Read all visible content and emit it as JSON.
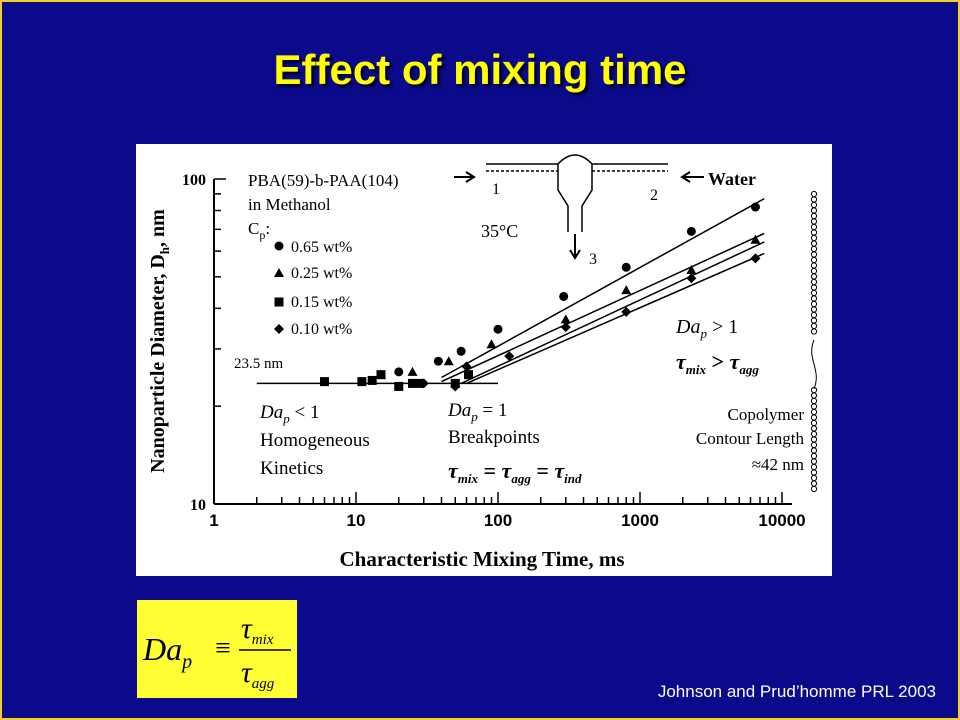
{
  "slide": {
    "title": "Effect of mixing time",
    "citation": "Johnson and Prud’homme PRL 2003",
    "formula": {
      "lhs": "Da",
      "lhs_sub": "p",
      "op": "≡",
      "num": "τ",
      "num_sub": "mix",
      "den": "τ",
      "den_sub": "agg"
    }
  },
  "figure": {
    "legend": {
      "title_lines": [
        "PBA(59)-b-PAA(104)",
        "in Methanol",
        "C"
      ],
      "cp_sub": "p",
      "cp_colon": ":",
      "entries": [
        {
          "label": "0.65 wt%",
          "marker": "circle"
        },
        {
          "label": "0.25 wt%",
          "marker": "triangle"
        },
        {
          "label": "0.15 wt%",
          "marker": "square"
        },
        {
          "label": "0.10 wt%",
          "marker": "diamond"
        }
      ]
    },
    "schematic": {
      "inlet1": "1",
      "inlet2": "2",
      "outlet": "3",
      "temperature": "35°C",
      "water": "Water"
    },
    "annotations": {
      "plateau_label": "23.5 nm",
      "regime_low": {
        "da": "Da",
        "sub": "p",
        "rel": " < 1",
        "line2": "Homogeneous",
        "line3": "Kinetics"
      },
      "regime_break": {
        "da": "Da",
        "sub": "p",
        "rel": " = 1",
        "line2": "Breakpoints",
        "eq": [
          "τ",
          "mix",
          " = ",
          "τ",
          "agg",
          " = ",
          "τ",
          "ind"
        ]
      },
      "regime_high": {
        "da": "Da",
        "sub": "p",
        "rel": " > 1",
        "eq": [
          "τ",
          "mix",
          " > ",
          "τ",
          "agg"
        ]
      },
      "copolymer": [
        "Copolymer",
        "Contour Length",
        "≈42 nm"
      ]
    }
  },
  "chart_data": {
    "type": "scatter",
    "x_scale": "log",
    "y_scale": "log",
    "xlim": [
      1,
      10000
    ],
    "ylim": [
      10,
      100
    ],
    "xlabel": "Characteristic Mixing Time, ms",
    "ylabel": "Nanoparticle Diameter, D",
    "ylabel_sub": "h",
    "ylabel_unit": ", nm",
    "x_ticks": [
      1,
      10,
      100,
      1000,
      10000
    ],
    "x_tick_labels": [
      "1",
      "10",
      "100",
      "1000",
      "10000"
    ],
    "y_ticks": [
      10,
      100
    ],
    "y_tick_labels": [
      "10",
      "100"
    ],
    "plateau": {
      "value": 23.5,
      "x_range": [
        2,
        100
      ]
    },
    "series": [
      {
        "name": "0.65 wt%",
        "marker": "circle",
        "x": [
          20,
          38,
          55,
          100,
          290,
          800,
          2300,
          6500
        ],
        "y": [
          25.5,
          27.5,
          29.5,
          34.5,
          43.5,
          53.5,
          69,
          82
        ],
        "fit": {
          "x": [
            40,
            7500
          ],
          "y": [
            24.5,
            87
          ]
        }
      },
      {
        "name": "0.25 wt%",
        "marker": "triangle",
        "x": [
          15,
          25,
          45,
          90,
          300,
          800,
          2300,
          6500
        ],
        "y": [
          25,
          25.5,
          27.5,
          31,
          37,
          45.5,
          52.5,
          65
        ],
        "fit": {
          "x": [
            40,
            7500
          ],
          "y": [
            23.8,
            68
          ]
        }
      },
      {
        "name": "0.15 wt%",
        "marker": "square",
        "x": [
          6,
          11,
          13,
          15,
          20,
          25,
          28,
          50,
          62
        ],
        "y": [
          23.8,
          23.8,
          24,
          25,
          23,
          23.5,
          23.5,
          23.5,
          25
        ],
        "fit": {
          "x": [
            55,
            7500
          ],
          "y": [
            23.5,
            64
          ]
        }
      },
      {
        "name": "0.10 wt%",
        "marker": "diamond",
        "x": [
          30,
          50,
          60,
          120,
          300,
          800,
          2300,
          6500
        ],
        "y": [
          23.5,
          23,
          26.5,
          28.5,
          35,
          39,
          49.5,
          57
        ],
        "fit": {
          "x": [
            60,
            7500
          ],
          "y": [
            23.5,
            59
          ]
        }
      }
    ]
  }
}
